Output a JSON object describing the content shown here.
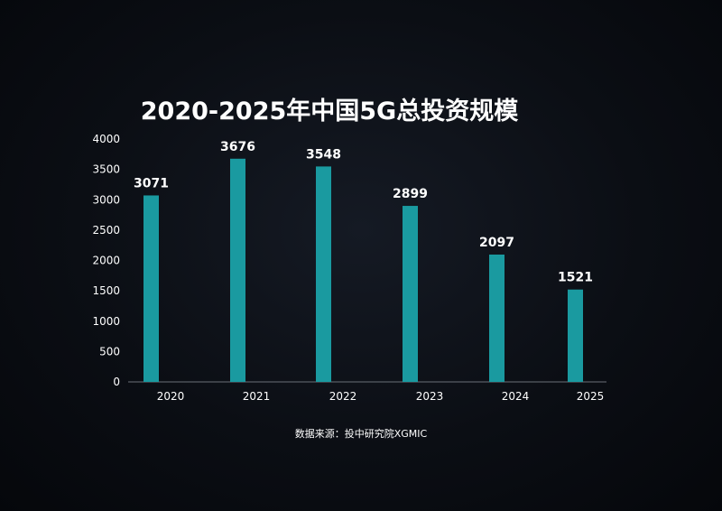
{
  "chart_data": {
    "type": "bar",
    "title": "2020-2025年中国5G总投资规模",
    "categories": [
      "2020",
      "2021",
      "2022",
      "2023",
      "2024",
      "2025"
    ],
    "values": [
      3071,
      3676,
      3548,
      2899,
      2097,
      1521
    ],
    "data_labels": [
      "3071",
      "3676",
      "3548",
      "2899",
      "2097",
      "1521"
    ],
    "yticks": [
      "0",
      "500",
      "1000",
      "1500",
      "2000",
      "2500",
      "3000",
      "3500",
      "4000"
    ],
    "ylim": [
      0,
      4000
    ],
    "grid": false,
    "bar_color": "#1a9aa0"
  },
  "source": "数据来源：投中研究院XGMIC"
}
